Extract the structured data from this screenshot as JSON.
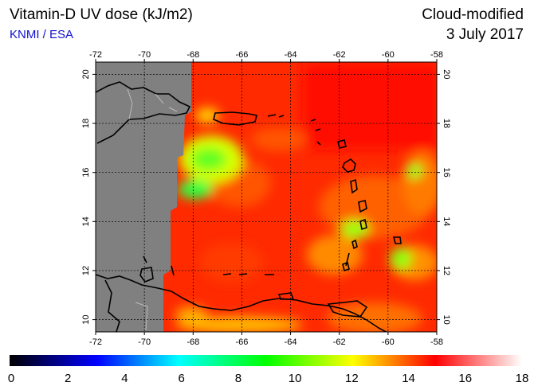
{
  "header": {
    "title": "Vitamin-D UV dose (kJ/m2)",
    "source": "KNMI / ESA",
    "mode": "Cloud-modified",
    "date": "3 July 2017"
  },
  "map": {
    "lon_range": [
      -72,
      -58
    ],
    "lat_range": [
      9.5,
      20.5
    ],
    "lon_ticks": [
      -72,
      -70,
      -68,
      -66,
      -64,
      -62,
      -60,
      -58
    ],
    "lat_ticks": [
      10,
      12,
      14,
      16,
      18,
      20
    ],
    "lon_tick_labels": [
      "-72",
      "-70",
      "-68",
      "-66",
      "-64",
      "-62",
      "-60",
      "-58"
    ],
    "lat_tick_labels": [
      "10",
      "12",
      "14",
      "16",
      "18",
      "20"
    ],
    "no_data_color": "#808080",
    "base_field_color": "#ff2a00"
  },
  "colorbar": {
    "min": 0,
    "max": 18,
    "tick_labels": [
      "0",
      "2",
      "4",
      "6",
      "8",
      "10",
      "12",
      "14",
      "16",
      "18"
    ],
    "colors": [
      "#000000",
      "#0000ff",
      "#00ffff",
      "#00ff00",
      "#ffff00",
      "#ff0000",
      "#ffffff"
    ]
  }
}
